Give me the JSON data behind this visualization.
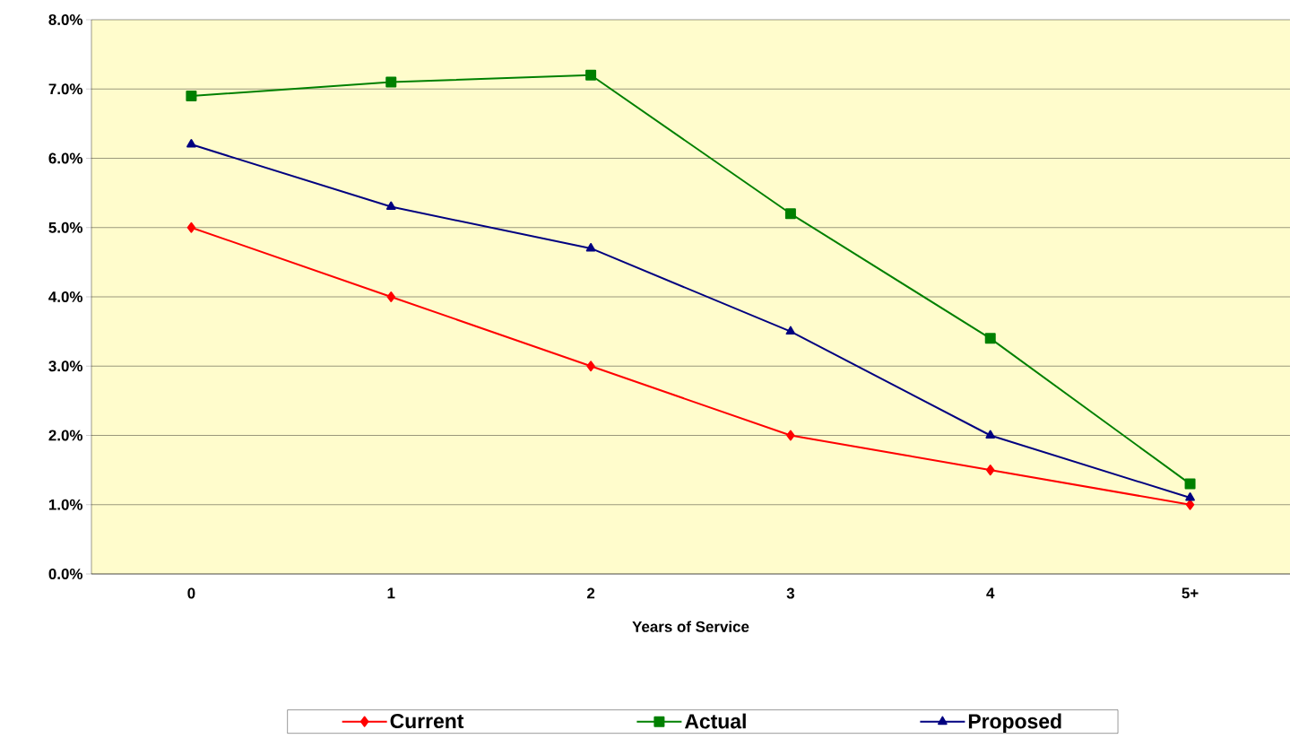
{
  "chart_data": {
    "type": "line",
    "xlabel": "Years of Service",
    "categories": [
      "0",
      "1",
      "2",
      "3",
      "4",
      "5+"
    ],
    "series": [
      {
        "name": "Current",
        "color": "#ff0000",
        "marker": "diamond",
        "values": [
          5.0,
          4.0,
          3.0,
          2.0,
          1.5,
          1.0
        ]
      },
      {
        "name": "Actual",
        "color": "#008000",
        "marker": "square",
        "values": [
          6.9,
          7.1,
          7.2,
          5.2,
          3.4,
          1.3
        ]
      },
      {
        "name": "Proposed",
        "color": "#000080",
        "marker": "triangle",
        "values": [
          6.2,
          5.3,
          4.7,
          3.5,
          2.0,
          1.1
        ]
      }
    ],
    "ylim": [
      0,
      8
    ],
    "yticks": [
      {
        "value": 0,
        "label": "0.0%"
      },
      {
        "value": 1,
        "label": "1.0%"
      },
      {
        "value": 2,
        "label": "2.0%"
      },
      {
        "value": 3,
        "label": "3.0%"
      },
      {
        "value": 4,
        "label": "4.0%"
      },
      {
        "value": 5,
        "label": "5.0%"
      },
      {
        "value": 6,
        "label": "6.0%"
      },
      {
        "value": 7,
        "label": "7.0%"
      },
      {
        "value": 8,
        "label": "8.0%"
      }
    ],
    "grid": "y",
    "legend": "bottom",
    "line_style": "solid"
  }
}
